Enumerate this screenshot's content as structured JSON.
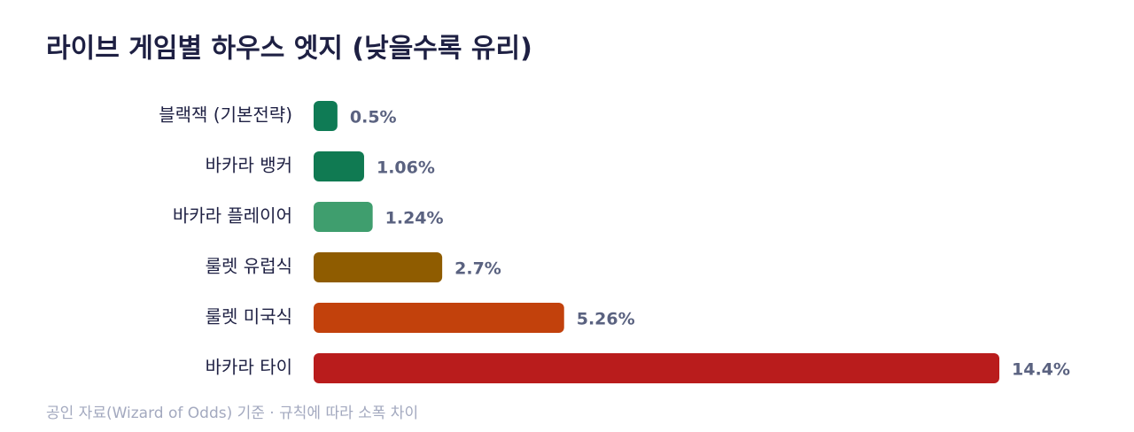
{
  "chart_data": {
    "type": "bar",
    "orientation": "horizontal",
    "title": "라이브 게임별 하우스 엣지 (낮을수록 유리)",
    "categories": [
      "블랙잭 (기본전략)",
      "바카라 뱅커",
      "바카라 플레이어",
      "룰렛 유럽식",
      "룰렛 미국식",
      "바카라 타이"
    ],
    "values": [
      0.5,
      1.06,
      1.24,
      2.7,
      5.26,
      14.4
    ],
    "value_labels": [
      "0.5%",
      "1.06%",
      "1.24%",
      "2.7%",
      "5.26%",
      "14.4%"
    ],
    "colors": [
      "#0f7b55",
      "#107a52",
      "#3f9e6e",
      "#8f5c00",
      "#c2410c",
      "#b91c1c"
    ],
    "source": "공인 자료(Wizard of Odds) 기준 · 규칙에 따라 소폭 차이"
  }
}
